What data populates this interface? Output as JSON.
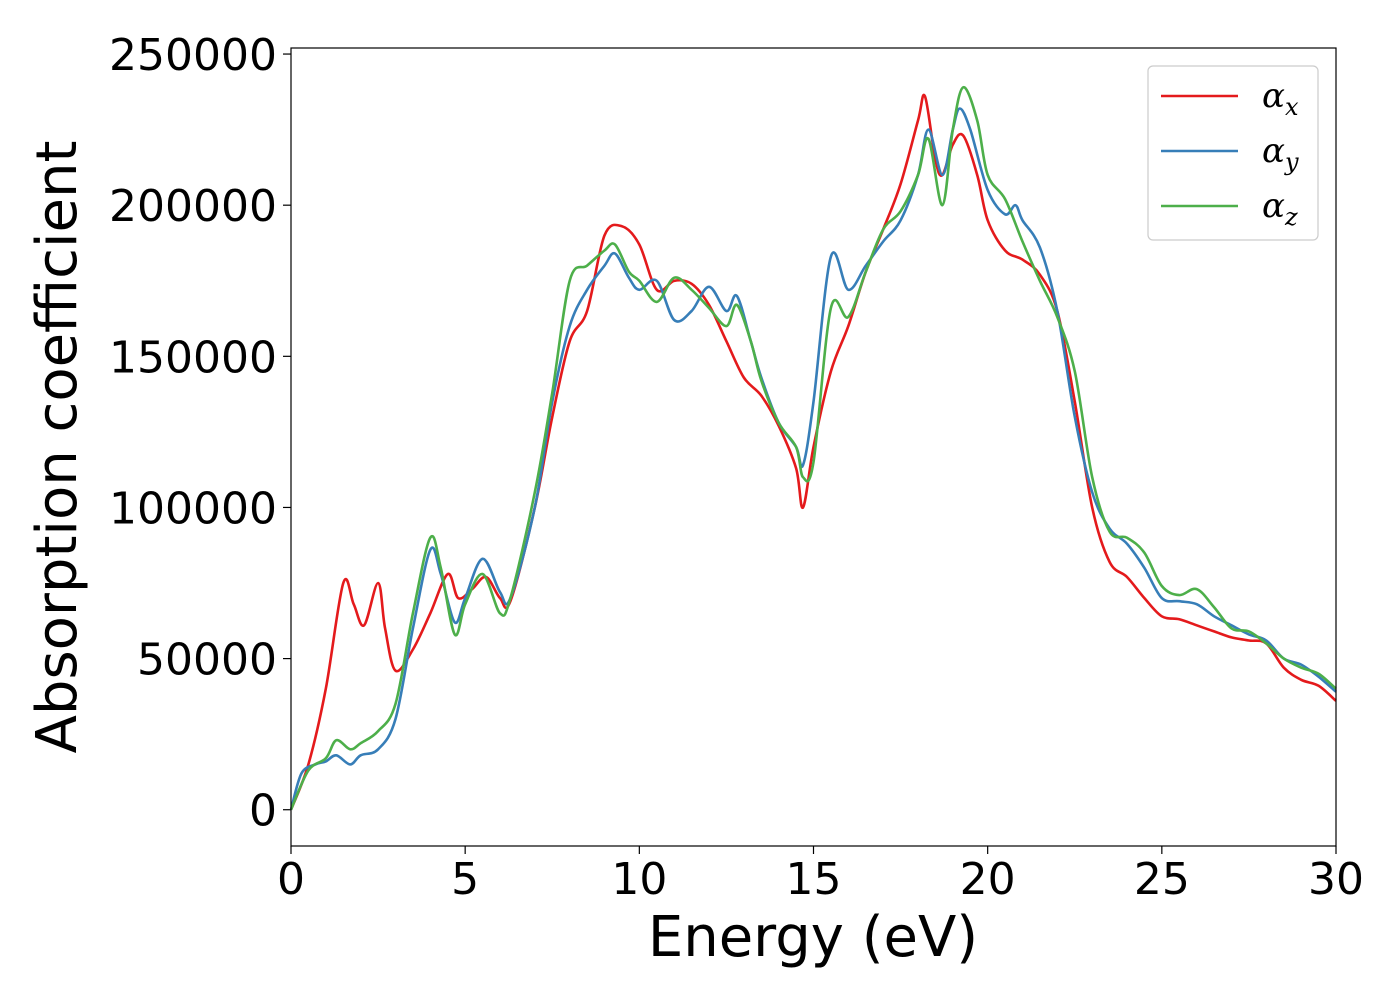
{
  "chart_data": {
    "type": "line",
    "xlabel": "Energy (eV)",
    "ylabel": "Absorption coefficient",
    "xlim": [
      0,
      30
    ],
    "ylim": [
      -12000,
      252000
    ],
    "xticks": [
      0,
      5,
      10,
      15,
      20,
      25,
      30
    ],
    "yticks": [
      0,
      50000,
      100000,
      150000,
      200000,
      250000
    ],
    "grid": false,
    "legend_position": "top-right",
    "series": [
      {
        "name": "α_x",
        "symbol": "α",
        "subscript": "x",
        "color": "#e41a1c",
        "x": [
          0,
          0.5,
          1.0,
          1.5,
          1.8,
          2.1,
          2.5,
          2.7,
          3.0,
          3.5,
          4.0,
          4.5,
          4.8,
          5.2,
          5.6,
          6.0,
          6.3,
          7.0,
          7.5,
          8.0,
          8.5,
          9.0,
          9.5,
          10.0,
          10.5,
          11.0,
          11.5,
          12.0,
          12.5,
          13.0,
          13.5,
          14.0,
          14.5,
          14.7,
          15.0,
          15.5,
          16.0,
          16.5,
          17.0,
          17.5,
          18.0,
          18.2,
          18.5,
          18.7,
          19.0,
          19.3,
          19.7,
          20.0,
          20.5,
          21.0,
          21.5,
          22.0,
          22.5,
          23.0,
          23.5,
          24.0,
          24.5,
          25.0,
          25.5,
          26.0,
          26.5,
          27.0,
          27.5,
          28.0,
          28.5,
          29.0,
          29.5,
          30.0
        ],
        "y": [
          0,
          15000,
          40000,
          75000,
          68000,
          61000,
          75000,
          60000,
          46000,
          53000,
          65000,
          78000,
          70000,
          73000,
          77000,
          70000,
          69000,
          100000,
          130000,
          155000,
          165000,
          190000,
          193000,
          187000,
          172000,
          175000,
          174000,
          167000,
          155000,
          143000,
          137000,
          127000,
          113000,
          100000,
          120000,
          145000,
          160000,
          178000,
          192000,
          207000,
          228000,
          236000,
          215000,
          210000,
          220000,
          223000,
          210000,
          195000,
          185000,
          182000,
          177000,
          165000,
          135000,
          100000,
          82000,
          77000,
          70000,
          64000,
          63000,
          61000,
          59000,
          57000,
          56000,
          55000,
          47000,
          43000,
          41000,
          36000
        ]
      },
      {
        "name": "α_y",
        "symbol": "α",
        "subscript": "y",
        "color": "#377eb8",
        "x": [
          0,
          0.3,
          0.7,
          1.0,
          1.3,
          1.7,
          2.0,
          2.5,
          3.0,
          3.5,
          4.0,
          4.3,
          4.7,
          5.0,
          5.5,
          6.0,
          6.3,
          7.0,
          7.5,
          8.0,
          8.5,
          9.0,
          9.3,
          9.7,
          10.0,
          10.5,
          11.0,
          11.5,
          12.0,
          12.5,
          12.8,
          13.2,
          13.5,
          14.0,
          14.5,
          14.7,
          15.0,
          15.5,
          16.0,
          16.5,
          17.0,
          17.5,
          18.0,
          18.3,
          18.7,
          19.0,
          19.2,
          19.5,
          20.0,
          20.5,
          20.8,
          21.0,
          21.5,
          22.0,
          22.5,
          23.0,
          23.5,
          24.0,
          24.5,
          25.0,
          25.5,
          26.0,
          26.5,
          27.0,
          27.5,
          28.0,
          28.5,
          29.0,
          29.5,
          30.0
        ],
        "y": [
          0,
          12000,
          15000,
          16000,
          18000,
          15000,
          18000,
          20000,
          30000,
          60000,
          86000,
          78000,
          62000,
          70000,
          83000,
          72000,
          70000,
          100000,
          135000,
          160000,
          172000,
          180000,
          184000,
          176000,
          172000,
          175000,
          162000,
          165000,
          173000,
          165000,
          170000,
          155000,
          143000,
          128000,
          120000,
          114000,
          135000,
          183000,
          172000,
          180000,
          188000,
          195000,
          210000,
          225000,
          210000,
          225000,
          232000,
          225000,
          205000,
          197000,
          200000,
          195000,
          186000,
          165000,
          130000,
          105000,
          93000,
          88000,
          80000,
          70000,
          69000,
          68000,
          64000,
          61000,
          58000,
          56000,
          50000,
          48000,
          44000,
          39000
        ]
      },
      {
        "name": "α_z",
        "symbol": "α",
        "subscript": "z",
        "color": "#4daf4a",
        "x": [
          0,
          0.5,
          1.0,
          1.3,
          1.7,
          2.0,
          2.5,
          3.0,
          3.5,
          4.0,
          4.3,
          4.7,
          5.0,
          5.5,
          6.0,
          6.3,
          7.0,
          7.5,
          8.0,
          8.5,
          9.0,
          9.3,
          9.7,
          10.0,
          10.5,
          11.0,
          11.5,
          12.0,
          12.5,
          12.8,
          13.2,
          13.5,
          14.0,
          14.5,
          14.7,
          15.0,
          15.5,
          16.0,
          16.5,
          17.0,
          17.5,
          18.0,
          18.3,
          18.7,
          19.0,
          19.3,
          19.7,
          20.0,
          20.5,
          21.0,
          21.5,
          22.0,
          22.5,
          23.0,
          23.5,
          24.0,
          24.5,
          25.0,
          25.5,
          26.0,
          26.5,
          27.0,
          27.5,
          28.0,
          28.5,
          29.0,
          29.5,
          30.0
        ],
        "y": [
          0,
          13000,
          17000,
          23000,
          20000,
          22000,
          26000,
          35000,
          65000,
          90000,
          80000,
          58000,
          68000,
          78000,
          65000,
          70000,
          105000,
          138000,
          175000,
          180000,
          185000,
          187000,
          178000,
          175000,
          168000,
          176000,
          172000,
          166000,
          160000,
          167000,
          155000,
          142000,
          128000,
          120000,
          110000,
          115000,
          166000,
          163000,
          178000,
          192000,
          198000,
          210000,
          222000,
          200000,
          225000,
          239000,
          228000,
          210000,
          202000,
          188000,
          175000,
          163000,
          145000,
          110000,
          92000,
          90000,
          85000,
          74000,
          71000,
          73000,
          67000,
          60000,
          59000,
          55000,
          50000,
          47000,
          45000,
          40000
        ]
      }
    ]
  }
}
